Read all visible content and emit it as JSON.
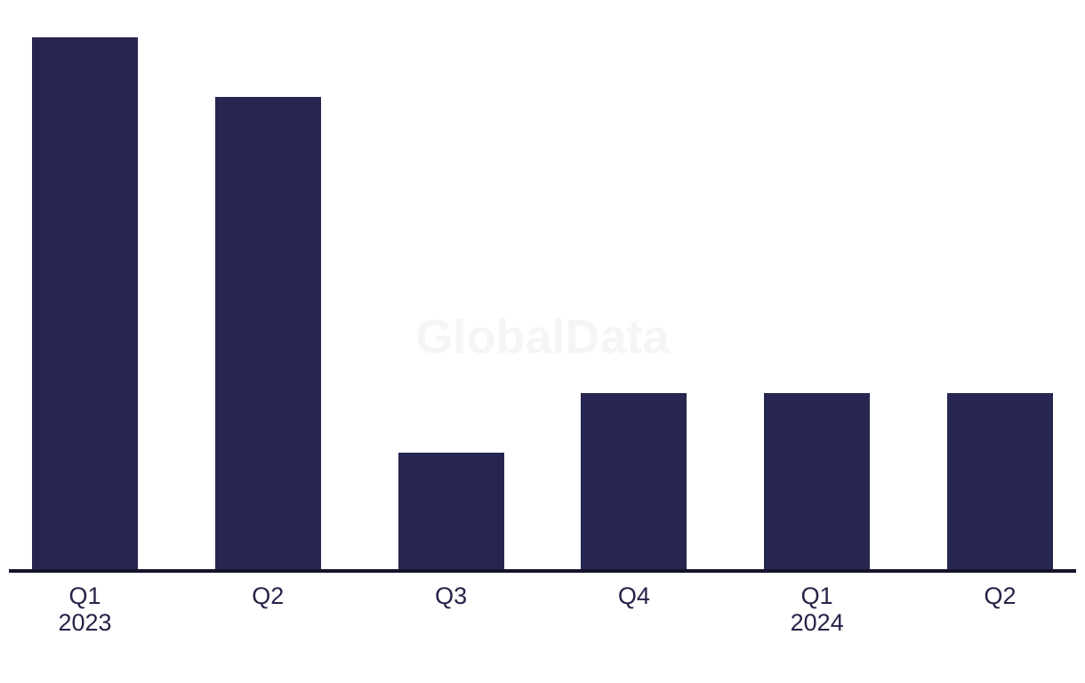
{
  "watermark": "GlobalData",
  "colors": {
    "background": "#ffffff",
    "bar": "#272650",
    "axis_line": "#14142c",
    "tick_label": "#252347",
    "watermark": "#f5f5f6"
  },
  "chart_data": {
    "type": "bar",
    "categories": [
      "Q1",
      "Q2",
      "Q3",
      "Q4",
      "Q1",
      "Q2"
    ],
    "year_labels": [
      {
        "index": 0,
        "label": "2023"
      },
      {
        "index": 4,
        "label": "2024"
      }
    ],
    "values": [
      100,
      88.8,
      22,
      33.2,
      33.2,
      33.2
    ],
    "title": "",
    "xlabel": "",
    "ylabel": "",
    "ylim": [
      0,
      103.5
    ],
    "grid": false,
    "legend": false,
    "y_axis_shown": false,
    "watermark": "GlobalData"
  }
}
